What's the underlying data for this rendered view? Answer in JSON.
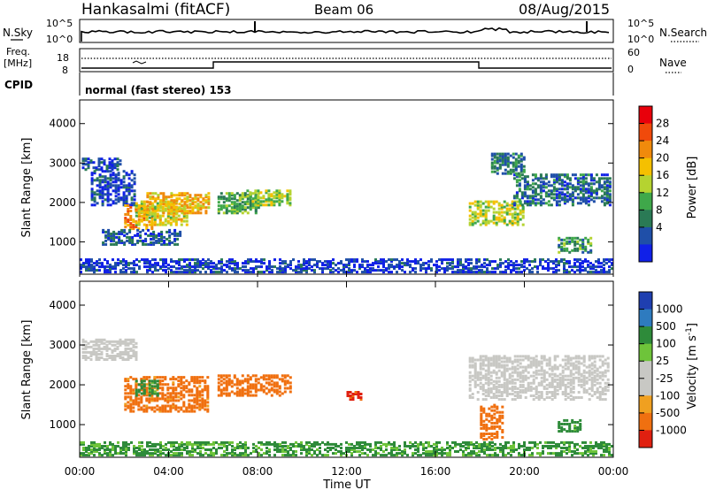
{
  "header": {
    "station": "Hankasalmi (fitACF)",
    "beam": "Beam 06",
    "date": "08/Aug/2015"
  },
  "top_panels": {
    "nsky_label": "N.Sky",
    "nsearch_label": "N.Search",
    "nsky_ticks": [
      "10^5",
      "10^0"
    ],
    "nsearch_ticks": [
      "10^5",
      "10^0"
    ],
    "freq_label_1": "Freq.",
    "freq_label_2": "[MHz]",
    "freq_ticks": [
      "18",
      "8"
    ],
    "nave_label": "Nave",
    "nave_ticks": [
      "60",
      "0"
    ],
    "cpid_label": "CPID",
    "cpid_text": "normal (fast stereo) 153"
  },
  "axes": {
    "x_ticks": [
      "00:00",
      "04:00",
      "08:00",
      "12:00",
      "16:00",
      "20:00",
      "00:00"
    ],
    "x_label": "Time UT",
    "y_ticks": [
      "4000",
      "3000",
      "2000",
      "1000"
    ],
    "y_label": "Slant Range [km]"
  },
  "power_colorbar": {
    "label": "Power [dB]",
    "ticks": [
      "28",
      "24",
      "20",
      "16",
      "12",
      "8",
      "4"
    ],
    "colors": [
      "#e8000b",
      "#f04a0b",
      "#f08a0c",
      "#f5c000",
      "#b5d330",
      "#3fa84a",
      "#2a7a55",
      "#1f4fa8",
      "#1020e8"
    ]
  },
  "velocity_colorbar": {
    "label": "Velocity [m s",
    "label_sup": "-1",
    "label_end": "]",
    "ticks": [
      "1000",
      "500",
      "100",
      "25",
      "-25",
      "-100",
      "-500",
      "-1000"
    ],
    "colors": [
      "#1f3fb0",
      "#2e7bbf",
      "#2e8b3a",
      "#6ec43a",
      "#c8c8c4",
      "#c8c8c4",
      "#f0a020",
      "#f07010",
      "#e02010"
    ]
  },
  "chart_data": [
    {
      "type": "heatmap",
      "title": "Power",
      "xlabel": "Time UT",
      "ylabel": "Slant Range [km]",
      "xlim": [
        0,
        24
      ],
      "ylim": [
        180,
        4600
      ],
      "colorbar": "Power [dB]",
      "zlim": [
        3,
        30
      ],
      "regions": [
        {
          "t0": 0.1,
          "t1": 1.8,
          "r0": 2800,
          "r1": 3100,
          "v": 7
        },
        {
          "t0": 0.5,
          "t1": 2.5,
          "r0": 1900,
          "r1": 2800,
          "v": 6
        },
        {
          "t0": 2.0,
          "t1": 3.2,
          "r0": 1300,
          "r1": 1900,
          "v": 22
        },
        {
          "t0": 2.5,
          "t1": 4.8,
          "r0": 1400,
          "r1": 2000,
          "v": 18
        },
        {
          "t0": 3.0,
          "t1": 5.8,
          "r0": 1700,
          "r1": 2200,
          "v": 20
        },
        {
          "t0": 1.0,
          "t1": 4.5,
          "r0": 900,
          "r1": 1300,
          "v": 8
        },
        {
          "t0": 6.2,
          "t1": 8.0,
          "r0": 1700,
          "r1": 2200,
          "v": 13
        },
        {
          "t0": 7.5,
          "t1": 9.5,
          "r0": 1900,
          "r1": 2300,
          "v": 16
        },
        {
          "t0": 17.5,
          "t1": 20.0,
          "r0": 1400,
          "r1": 2000,
          "v": 17
        },
        {
          "t0": 19.5,
          "t1": 23.8,
          "r0": 1900,
          "r1": 2700,
          "v": 9
        },
        {
          "t0": 18.5,
          "t1": 20.0,
          "r0": 2700,
          "r1": 3200,
          "v": 10
        },
        {
          "t0": 21.5,
          "t1": 23.0,
          "r0": 700,
          "r1": 1100,
          "v": 12
        },
        {
          "t0": 0.0,
          "t1": 24.0,
          "r0": 200,
          "r1": 550,
          "v": 6
        }
      ]
    },
    {
      "type": "heatmap",
      "title": "Velocity",
      "xlabel": "Time UT",
      "ylabel": "Slant Range [km]",
      "xlim": [
        0,
        24
      ],
      "ylim": [
        180,
        4600
      ],
      "colorbar": "Velocity [m s-1]",
      "regions": [
        {
          "t0": 0.1,
          "t1": 2.5,
          "r0": 2600,
          "r1": 3100,
          "v": 0
        },
        {
          "t0": 2.0,
          "t1": 5.8,
          "r0": 1300,
          "r1": 2200,
          "v": -150
        },
        {
          "t0": 2.5,
          "t1": 3.5,
          "r0": 1700,
          "r1": 2100,
          "v": 150
        },
        {
          "t0": 6.2,
          "t1": 9.5,
          "r0": 1700,
          "r1": 2200,
          "v": -200
        },
        {
          "t0": 12.0,
          "t1": 12.6,
          "r0": 1600,
          "r1": 1800,
          "v": -600
        },
        {
          "t0": 17.5,
          "t1": 23.8,
          "r0": 1600,
          "r1": 2700,
          "v": 0
        },
        {
          "t0": 18.0,
          "t1": 19.0,
          "r0": 600,
          "r1": 1500,
          "v": -300
        },
        {
          "t0": 21.5,
          "t1": 22.5,
          "r0": 800,
          "r1": 1100,
          "v": 150
        },
        {
          "t0": 0.0,
          "t1": 24.0,
          "r0": 200,
          "r1": 550,
          "v": 120
        }
      ]
    }
  ]
}
